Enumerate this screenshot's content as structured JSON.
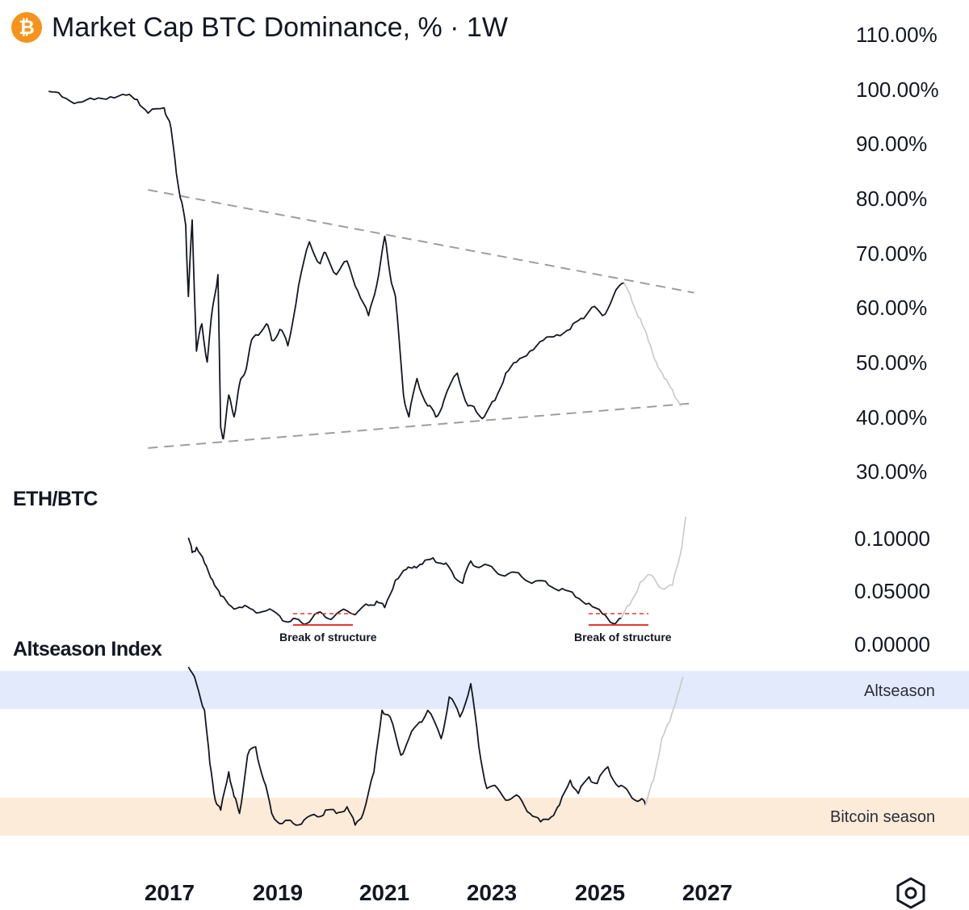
{
  "header": {
    "title": "Market Cap BTC Dominance, % · 1W",
    "icon": "bitcoin-icon",
    "icon_symbol": "₿"
  },
  "colors": {
    "btc_orange": "#f7931a",
    "candle": "#131722",
    "trendline": "#9e9e9e",
    "projection": "#c8c8c8",
    "altseason_band": "#e3eafb",
    "bitcoin_season_band": "#fcebd8",
    "break_line": "#e53935"
  },
  "chart_data": [
    {
      "type": "line",
      "title": "Market Cap BTC Dominance, % · 1W",
      "ylim": [
        30,
        110
      ],
      "y_ticks": [
        "110.00%",
        "100.00%",
        "90.00%",
        "80.00%",
        "70.00%",
        "60.00%",
        "50.00%",
        "40.00%",
        "30.00%"
      ],
      "x_ticks": [
        "2017",
        "2019",
        "2021",
        "2023",
        "2025",
        "2027"
      ],
      "series": [
        {
          "points": [
            [
              2014.75,
              99.5
            ],
            [
              2015.0,
              98.5
            ],
            [
              2015.3,
              97.5
            ],
            [
              2015.6,
              98.0
            ],
            [
              2015.9,
              98.5
            ],
            [
              2016.2,
              98.8
            ],
            [
              2016.4,
              98.0
            ],
            [
              2016.6,
              95.5
            ],
            [
              2016.9,
              96.5
            ],
            [
              2017.0,
              94.0
            ],
            [
              2017.1,
              87.0
            ],
            [
              2017.2,
              80.0
            ],
            [
              2017.3,
              75.0
            ],
            [
              2017.35,
              62.0
            ],
            [
              2017.42,
              76.0
            ],
            [
              2017.5,
              52.0
            ],
            [
              2017.6,
              57.0
            ],
            [
              2017.7,
              50.0
            ],
            [
              2017.8,
              60.0
            ],
            [
              2017.9,
              66.0
            ],
            [
              2017.95,
              38.0
            ],
            [
              2018.0,
              36.0
            ],
            [
              2018.1,
              44.0
            ],
            [
              2018.2,
              40.0
            ],
            [
              2018.3,
              46.0
            ],
            [
              2018.4,
              48.0
            ],
            [
              2018.5,
              53.0
            ],
            [
              2018.6,
              55.0
            ],
            [
              2018.8,
              57.0
            ],
            [
              2018.9,
              54.0
            ],
            [
              2019.05,
              56.0
            ],
            [
              2019.2,
              53.0
            ],
            [
              2019.4,
              64.0
            ],
            [
              2019.6,
              72.0
            ],
            [
              2019.8,
              68.0
            ],
            [
              2019.9,
              70.0
            ],
            [
              2020.1,
              66.0
            ],
            [
              2020.3,
              68.5
            ],
            [
              2020.5,
              63.0
            ],
            [
              2020.7,
              58.5
            ],
            [
              2020.85,
              64.0
            ],
            [
              2021.0,
              73.0
            ],
            [
              2021.1,
              66.0
            ],
            [
              2021.2,
              62.0
            ],
            [
              2021.35,
              44.0
            ],
            [
              2021.45,
              40.0
            ],
            [
              2021.6,
              47.0
            ],
            [
              2021.8,
              42.0
            ],
            [
              2021.95,
              40.0
            ],
            [
              2022.1,
              43.0
            ],
            [
              2022.35,
              48.0
            ],
            [
              2022.55,
              42.0
            ],
            [
              2022.7,
              41.0
            ],
            [
              2022.85,
              40.0
            ],
            [
              2023.05,
              43.0
            ],
            [
              2023.25,
              48.0
            ],
            [
              2023.45,
              50.0
            ],
            [
              2023.7,
              52.0
            ],
            [
              2023.95,
              54.0
            ],
            [
              2024.2,
              55.0
            ],
            [
              2024.45,
              56.0
            ],
            [
              2024.65,
              58.0
            ],
            [
              2024.85,
              60.0
            ],
            [
              2025.05,
              58.5
            ],
            [
              2025.25,
              62.0
            ],
            [
              2025.45,
              64.5
            ]
          ]
        },
        {
          "name": "Projection",
          "points": [
            [
              2025.45,
              64.5
            ],
            [
              2025.6,
              61.0
            ],
            [
              2025.75,
              58.0
            ],
            [
              2025.9,
              54.0
            ],
            [
              2026.05,
              50.0
            ],
            [
              2026.2,
              47.0
            ],
            [
              2026.35,
              45.0
            ],
            [
              2026.5,
              42.0
            ]
          ]
        }
      ],
      "trendlines": [
        {
          "from": [
            2016.6,
            81.5
          ],
          "to": [
            2026.75,
            62.7
          ]
        },
        {
          "from": [
            2016.6,
            34.3
          ],
          "to": [
            2026.75,
            42.5
          ]
        }
      ]
    },
    {
      "type": "line",
      "title": "ETH/BTC",
      "ylim": [
        0,
        0.12
      ],
      "y_ticks": [
        "0.10000",
        "0.05000",
        "0.00000"
      ],
      "series": [
        {
          "points": [
            [
              2017.35,
              0.1
            ],
            [
              2017.42,
              0.086
            ],
            [
              2017.5,
              0.091
            ],
            [
              2017.65,
              0.076
            ],
            [
              2017.8,
              0.06
            ],
            [
              2017.95,
              0.045
            ],
            [
              2018.15,
              0.035
            ],
            [
              2018.35,
              0.034
            ],
            [
              2018.55,
              0.032
            ],
            [
              2018.8,
              0.031
            ],
            [
              2019.05,
              0.026
            ],
            [
              2019.25,
              0.021
            ],
            [
              2019.45,
              0.02
            ],
            [
              2019.65,
              0.024
            ],
            [
              2019.85,
              0.028
            ],
            [
              2020.05,
              0.025
            ],
            [
              2020.3,
              0.031
            ],
            [
              2020.5,
              0.03
            ],
            [
              2020.7,
              0.036
            ],
            [
              2020.85,
              0.04
            ],
            [
              2021.0,
              0.034
            ],
            [
              2021.2,
              0.06
            ],
            [
              2021.4,
              0.07
            ],
            [
              2021.55,
              0.073
            ],
            [
              2021.7,
              0.075
            ],
            [
              2021.9,
              0.081
            ],
            [
              2022.1,
              0.075
            ],
            [
              2022.25,
              0.068
            ],
            [
              2022.45,
              0.057
            ],
            [
              2022.6,
              0.078
            ],
            [
              2022.8,
              0.073
            ],
            [
              2023.05,
              0.069
            ],
            [
              2023.3,
              0.066
            ],
            [
              2023.55,
              0.063
            ],
            [
              2023.8,
              0.059
            ],
            [
              2024.05,
              0.055
            ],
            [
              2024.3,
              0.052
            ],
            [
              2024.55,
              0.044
            ],
            [
              2024.8,
              0.038
            ],
            [
              2025.05,
              0.028
            ],
            [
              2025.25,
              0.019
            ],
            [
              2025.4,
              0.024
            ]
          ]
        },
        {
          "name": "Projection",
          "points": [
            [
              2025.4,
              0.024
            ],
            [
              2025.55,
              0.036
            ],
            [
              2025.75,
              0.058
            ],
            [
              2025.95,
              0.065
            ],
            [
              2026.15,
              0.052
            ],
            [
              2026.35,
              0.055
            ],
            [
              2026.5,
              0.085
            ],
            [
              2026.6,
              0.12
            ]
          ]
        }
      ],
      "annotations": [
        "Break of structure",
        "Break of structure"
      ]
    },
    {
      "type": "line",
      "title": "Altseason Index",
      "ylim": [
        0,
        100
      ],
      "bands": [
        "Altseason",
        "Bitcoin season"
      ],
      "series": [
        {
          "points": [
            [
              2017.35,
              98
            ],
            [
              2017.5,
              88
            ],
            [
              2017.65,
              72
            ],
            [
              2017.75,
              40
            ],
            [
              2017.85,
              18
            ],
            [
              2017.95,
              12
            ],
            [
              2018.1,
              35
            ],
            [
              2018.2,
              20
            ],
            [
              2018.3,
              10
            ],
            [
              2018.45,
              45
            ],
            [
              2018.6,
              50
            ],
            [
              2018.75,
              30
            ],
            [
              2018.9,
              10
            ],
            [
              2019.1,
              4
            ],
            [
              2019.3,
              4
            ],
            [
              2019.5,
              6
            ],
            [
              2019.75,
              8
            ],
            [
              2019.9,
              12
            ],
            [
              2020.1,
              10
            ],
            [
              2020.3,
              14
            ],
            [
              2020.45,
              3
            ],
            [
              2020.6,
              10
            ],
            [
              2020.8,
              35
            ],
            [
              2020.95,
              72
            ],
            [
              2021.1,
              68
            ],
            [
              2021.3,
              45
            ],
            [
              2021.45,
              55
            ],
            [
              2021.65,
              65
            ],
            [
              2021.8,
              72
            ],
            [
              2022.05,
              55
            ],
            [
              2022.2,
              80
            ],
            [
              2022.4,
              68
            ],
            [
              2022.6,
              88
            ],
            [
              2022.75,
              50
            ],
            [
              2022.9,
              25
            ],
            [
              2023.1,
              25
            ],
            [
              2023.3,
              18
            ],
            [
              2023.5,
              20
            ],
            [
              2023.7,
              10
            ],
            [
              2023.9,
              5
            ],
            [
              2024.1,
              8
            ],
            [
              2024.25,
              15
            ],
            [
              2024.45,
              30
            ],
            [
              2024.6,
              22
            ],
            [
              2024.8,
              32
            ],
            [
              2024.95,
              28
            ],
            [
              2025.15,
              38
            ],
            [
              2025.35,
              26
            ],
            [
              2025.55,
              22
            ],
            [
              2025.75,
              18
            ],
            [
              2025.85,
              15
            ]
          ]
        },
        {
          "name": "Projection",
          "points": [
            [
              2025.85,
              15
            ],
            [
              2026.0,
              30
            ],
            [
              2026.15,
              55
            ],
            [
              2026.3,
              65
            ],
            [
              2026.45,
              82
            ],
            [
              2026.55,
              92
            ]
          ]
        }
      ]
    }
  ],
  "footer": {
    "settings_icon": "settings-hexagon-icon"
  }
}
